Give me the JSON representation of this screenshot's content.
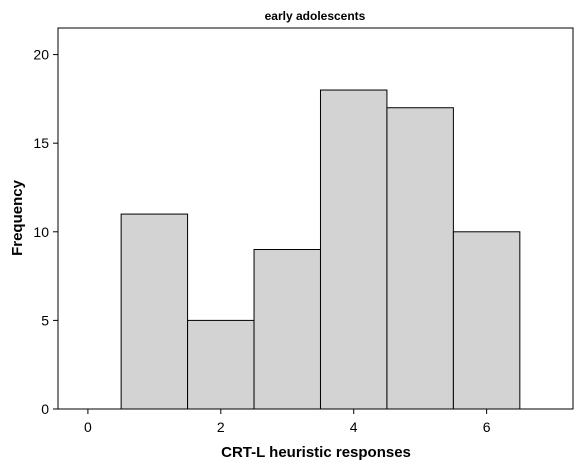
{
  "chart_data": {
    "type": "bar",
    "title": "early adolescents",
    "xlabel": "CRT-L heuristic responses",
    "ylabel": "Frequency",
    "bin_width": 1,
    "bins": [
      {
        "x": 1,
        "value": 11
      },
      {
        "x": 2,
        "value": 5
      },
      {
        "x": 3,
        "value": 9
      },
      {
        "x": 4,
        "value": 18
      },
      {
        "x": 5,
        "value": 17
      },
      {
        "x": 6,
        "value": 10
      }
    ],
    "xlim": [
      -0.45,
      7.3
    ],
    "ylim": [
      0,
      21.5
    ],
    "xticks": [
      0,
      2,
      4,
      6
    ],
    "yticks": [
      0,
      5,
      10,
      15,
      20
    ],
    "bar_color": "#d3d3d3",
    "edge_color": "#000000",
    "grid": false
  }
}
